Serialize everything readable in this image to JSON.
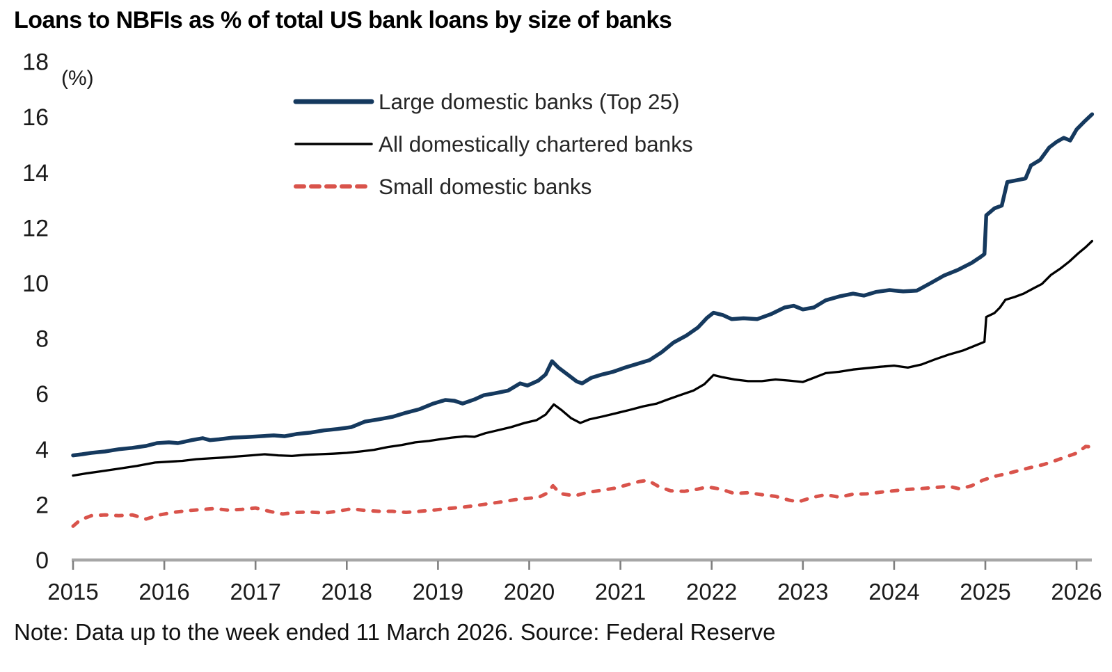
{
  "title": "Loans to NBFIs as % of total US bank loans by size of banks",
  "note": "Note: Data up to the week ended 11 March 2026. Source: Federal Reserve",
  "unit_label": "(%)",
  "colors": {
    "large_banks_line": "#15395e",
    "all_banks_line": "#000000",
    "small_banks_line": "#d9534b",
    "axis_line": "#a6a6a6",
    "tick_mark": "#7f7f7f",
    "axis_text": "#1a1a1a",
    "legend_text": "#262626"
  },
  "chart_data": {
    "type": "line",
    "title": "Loans to NBFIs as % of total US bank loans by size of banks",
    "unit": "%",
    "grid": false,
    "legend_position": "top-center-inside",
    "x_axis": {
      "min": 2015,
      "max": 2026.2,
      "ticks": [
        2015,
        2016,
        2017,
        2018,
        2019,
        2020,
        2021,
        2022,
        2023,
        2024,
        2025,
        2026
      ]
    },
    "y_axis": {
      "min": 0,
      "max": 18,
      "ticks": [
        0,
        2,
        4,
        6,
        8,
        10,
        12,
        14,
        16,
        18
      ]
    },
    "series": [
      {
        "name": "Large domestic banks (Top 25)",
        "color": "#15395e",
        "style": "solid",
        "width": 5.5,
        "points": [
          [
            2015.0,
            3.78
          ],
          [
            2015.1,
            3.82
          ],
          [
            2015.2,
            3.87
          ],
          [
            2015.35,
            3.92
          ],
          [
            2015.5,
            4.0
          ],
          [
            2015.65,
            4.05
          ],
          [
            2015.8,
            4.12
          ],
          [
            2015.92,
            4.22
          ],
          [
            2016.05,
            4.25
          ],
          [
            2016.15,
            4.22
          ],
          [
            2016.3,
            4.33
          ],
          [
            2016.42,
            4.4
          ],
          [
            2016.5,
            4.33
          ],
          [
            2016.6,
            4.36
          ],
          [
            2016.75,
            4.42
          ],
          [
            2016.9,
            4.44
          ],
          [
            2017.05,
            4.47
          ],
          [
            2017.2,
            4.5
          ],
          [
            2017.32,
            4.47
          ],
          [
            2017.45,
            4.55
          ],
          [
            2017.6,
            4.6
          ],
          [
            2017.75,
            4.68
          ],
          [
            2017.9,
            4.73
          ],
          [
            2018.05,
            4.8
          ],
          [
            2018.2,
            5.0
          ],
          [
            2018.35,
            5.08
          ],
          [
            2018.5,
            5.17
          ],
          [
            2018.65,
            5.32
          ],
          [
            2018.8,
            5.45
          ],
          [
            2018.95,
            5.65
          ],
          [
            2019.08,
            5.78
          ],
          [
            2019.18,
            5.75
          ],
          [
            2019.27,
            5.65
          ],
          [
            2019.4,
            5.8
          ],
          [
            2019.5,
            5.95
          ],
          [
            2019.62,
            6.02
          ],
          [
            2019.77,
            6.12
          ],
          [
            2019.9,
            6.38
          ],
          [
            2019.98,
            6.3
          ],
          [
            2020.1,
            6.48
          ],
          [
            2020.18,
            6.7
          ],
          [
            2020.25,
            7.18
          ],
          [
            2020.32,
            6.95
          ],
          [
            2020.42,
            6.7
          ],
          [
            2020.52,
            6.45
          ],
          [
            2020.58,
            6.38
          ],
          [
            2020.68,
            6.58
          ],
          [
            2020.8,
            6.7
          ],
          [
            2020.92,
            6.8
          ],
          [
            2021.05,
            6.95
          ],
          [
            2021.18,
            7.08
          ],
          [
            2021.32,
            7.22
          ],
          [
            2021.45,
            7.5
          ],
          [
            2021.58,
            7.85
          ],
          [
            2021.72,
            8.1
          ],
          [
            2021.85,
            8.4
          ],
          [
            2021.95,
            8.75
          ],
          [
            2022.02,
            8.93
          ],
          [
            2022.12,
            8.85
          ],
          [
            2022.22,
            8.7
          ],
          [
            2022.35,
            8.73
          ],
          [
            2022.5,
            8.7
          ],
          [
            2022.65,
            8.88
          ],
          [
            2022.8,
            9.12
          ],
          [
            2022.9,
            9.18
          ],
          [
            2023.0,
            9.05
          ],
          [
            2023.12,
            9.12
          ],
          [
            2023.25,
            9.38
          ],
          [
            2023.4,
            9.52
          ],
          [
            2023.55,
            9.62
          ],
          [
            2023.67,
            9.55
          ],
          [
            2023.8,
            9.68
          ],
          [
            2023.95,
            9.75
          ],
          [
            2024.1,
            9.7
          ],
          [
            2024.25,
            9.73
          ],
          [
            2024.4,
            10.0
          ],
          [
            2024.55,
            10.28
          ],
          [
            2024.7,
            10.48
          ],
          [
            2024.85,
            10.73
          ],
          [
            2024.95,
            10.95
          ],
          [
            2024.99,
            11.05
          ],
          [
            2025.01,
            12.45
          ],
          [
            2025.1,
            12.7
          ],
          [
            2025.18,
            12.8
          ],
          [
            2025.24,
            13.65
          ],
          [
            2025.35,
            13.72
          ],
          [
            2025.44,
            13.78
          ],
          [
            2025.5,
            14.25
          ],
          [
            2025.6,
            14.45
          ],
          [
            2025.7,
            14.9
          ],
          [
            2025.78,
            15.1
          ],
          [
            2025.86,
            15.25
          ],
          [
            2025.93,
            15.15
          ],
          [
            2026.0,
            15.55
          ],
          [
            2026.08,
            15.82
          ],
          [
            2026.17,
            16.1
          ]
        ]
      },
      {
        "name": "All domestically chartered banks",
        "color": "#000000",
        "style": "solid",
        "width": 3.3,
        "points": [
          [
            2015.0,
            3.05
          ],
          [
            2015.15,
            3.13
          ],
          [
            2015.3,
            3.2
          ],
          [
            2015.5,
            3.3
          ],
          [
            2015.7,
            3.4
          ],
          [
            2015.9,
            3.52
          ],
          [
            2016.05,
            3.55
          ],
          [
            2016.2,
            3.58
          ],
          [
            2016.35,
            3.64
          ],
          [
            2016.5,
            3.67
          ],
          [
            2016.65,
            3.7
          ],
          [
            2016.8,
            3.74
          ],
          [
            2016.95,
            3.78
          ],
          [
            2017.1,
            3.82
          ],
          [
            2017.25,
            3.78
          ],
          [
            2017.4,
            3.76
          ],
          [
            2017.55,
            3.8
          ],
          [
            2017.7,
            3.82
          ],
          [
            2017.85,
            3.84
          ],
          [
            2018.0,
            3.87
          ],
          [
            2018.15,
            3.92
          ],
          [
            2018.3,
            3.98
          ],
          [
            2018.45,
            4.08
          ],
          [
            2018.6,
            4.15
          ],
          [
            2018.75,
            4.25
          ],
          [
            2018.9,
            4.3
          ],
          [
            2019.0,
            4.35
          ],
          [
            2019.15,
            4.42
          ],
          [
            2019.3,
            4.47
          ],
          [
            2019.4,
            4.45
          ],
          [
            2019.52,
            4.58
          ],
          [
            2019.65,
            4.68
          ],
          [
            2019.8,
            4.8
          ],
          [
            2019.95,
            4.95
          ],
          [
            2020.08,
            5.05
          ],
          [
            2020.18,
            5.25
          ],
          [
            2020.27,
            5.62
          ],
          [
            2020.36,
            5.4
          ],
          [
            2020.46,
            5.12
          ],
          [
            2020.56,
            4.95
          ],
          [
            2020.66,
            5.08
          ],
          [
            2020.8,
            5.18
          ],
          [
            2020.95,
            5.3
          ],
          [
            2021.1,
            5.42
          ],
          [
            2021.25,
            5.55
          ],
          [
            2021.4,
            5.65
          ],
          [
            2021.52,
            5.8
          ],
          [
            2021.65,
            5.95
          ],
          [
            2021.8,
            6.12
          ],
          [
            2021.92,
            6.35
          ],
          [
            2022.02,
            6.68
          ],
          [
            2022.12,
            6.6
          ],
          [
            2022.25,
            6.52
          ],
          [
            2022.4,
            6.46
          ],
          [
            2022.55,
            6.46
          ],
          [
            2022.7,
            6.52
          ],
          [
            2022.85,
            6.48
          ],
          [
            2023.0,
            6.43
          ],
          [
            2023.12,
            6.58
          ],
          [
            2023.25,
            6.75
          ],
          [
            2023.4,
            6.8
          ],
          [
            2023.55,
            6.88
          ],
          [
            2023.7,
            6.93
          ],
          [
            2023.85,
            6.98
          ],
          [
            2024.0,
            7.02
          ],
          [
            2024.15,
            6.95
          ],
          [
            2024.3,
            7.06
          ],
          [
            2024.45,
            7.25
          ],
          [
            2024.6,
            7.42
          ],
          [
            2024.75,
            7.56
          ],
          [
            2024.9,
            7.76
          ],
          [
            2024.99,
            7.88
          ],
          [
            2025.01,
            8.78
          ],
          [
            2025.1,
            8.92
          ],
          [
            2025.16,
            9.12
          ],
          [
            2025.22,
            9.4
          ],
          [
            2025.32,
            9.5
          ],
          [
            2025.42,
            9.62
          ],
          [
            2025.52,
            9.8
          ],
          [
            2025.62,
            9.97
          ],
          [
            2025.72,
            10.3
          ],
          [
            2025.82,
            10.52
          ],
          [
            2025.92,
            10.78
          ],
          [
            2026.02,
            11.08
          ],
          [
            2026.1,
            11.3
          ],
          [
            2026.17,
            11.52
          ]
        ]
      },
      {
        "name": "Small domestic banks",
        "color": "#d9534b",
        "style": "dashed",
        "width": 5,
        "points": [
          [
            2015.0,
            1.22
          ],
          [
            2015.08,
            1.45
          ],
          [
            2015.2,
            1.6
          ],
          [
            2015.35,
            1.63
          ],
          [
            2015.5,
            1.6
          ],
          [
            2015.65,
            1.63
          ],
          [
            2015.8,
            1.48
          ],
          [
            2015.95,
            1.63
          ],
          [
            2016.1,
            1.72
          ],
          [
            2016.25,
            1.78
          ],
          [
            2016.4,
            1.82
          ],
          [
            2016.55,
            1.86
          ],
          [
            2016.7,
            1.8
          ],
          [
            2016.85,
            1.83
          ],
          [
            2017.0,
            1.88
          ],
          [
            2017.15,
            1.76
          ],
          [
            2017.3,
            1.66
          ],
          [
            2017.45,
            1.72
          ],
          [
            2017.6,
            1.73
          ],
          [
            2017.75,
            1.7
          ],
          [
            2017.9,
            1.76
          ],
          [
            2018.05,
            1.85
          ],
          [
            2018.2,
            1.79
          ],
          [
            2018.35,
            1.76
          ],
          [
            2018.5,
            1.76
          ],
          [
            2018.65,
            1.72
          ],
          [
            2018.8,
            1.76
          ],
          [
            2018.95,
            1.8
          ],
          [
            2019.1,
            1.86
          ],
          [
            2019.25,
            1.9
          ],
          [
            2019.4,
            1.96
          ],
          [
            2019.55,
            2.03
          ],
          [
            2019.7,
            2.1
          ],
          [
            2019.85,
            2.18
          ],
          [
            2020.0,
            2.23
          ],
          [
            2020.1,
            2.26
          ],
          [
            2020.2,
            2.42
          ],
          [
            2020.26,
            2.68
          ],
          [
            2020.34,
            2.4
          ],
          [
            2020.5,
            2.32
          ],
          [
            2020.65,
            2.45
          ],
          [
            2020.8,
            2.52
          ],
          [
            2020.95,
            2.6
          ],
          [
            2021.08,
            2.72
          ],
          [
            2021.2,
            2.83
          ],
          [
            2021.3,
            2.88
          ],
          [
            2021.42,
            2.65
          ],
          [
            2021.55,
            2.5
          ],
          [
            2021.7,
            2.48
          ],
          [
            2021.85,
            2.56
          ],
          [
            2021.95,
            2.64
          ],
          [
            2022.1,
            2.56
          ],
          [
            2022.25,
            2.4
          ],
          [
            2022.4,
            2.43
          ],
          [
            2022.55,
            2.36
          ],
          [
            2022.7,
            2.3
          ],
          [
            2022.85,
            2.16
          ],
          [
            2022.95,
            2.1
          ],
          [
            2023.1,
            2.26
          ],
          [
            2023.25,
            2.36
          ],
          [
            2023.4,
            2.27
          ],
          [
            2023.55,
            2.38
          ],
          [
            2023.7,
            2.39
          ],
          [
            2023.85,
            2.45
          ],
          [
            2024.0,
            2.5
          ],
          [
            2024.15,
            2.55
          ],
          [
            2024.3,
            2.58
          ],
          [
            2024.45,
            2.62
          ],
          [
            2024.6,
            2.66
          ],
          [
            2024.72,
            2.57
          ],
          [
            2024.85,
            2.68
          ],
          [
            2024.97,
            2.88
          ],
          [
            2025.1,
            3.02
          ],
          [
            2025.25,
            3.13
          ],
          [
            2025.4,
            3.26
          ],
          [
            2025.52,
            3.36
          ],
          [
            2025.64,
            3.45
          ],
          [
            2025.76,
            3.58
          ],
          [
            2025.88,
            3.72
          ],
          [
            2026.0,
            3.86
          ],
          [
            2026.1,
            4.1
          ],
          [
            2026.17,
            4.08
          ]
        ]
      }
    ]
  }
}
